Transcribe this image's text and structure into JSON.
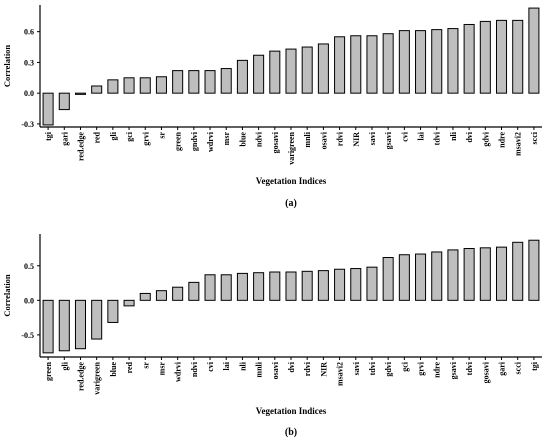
{
  "chart_data": [
    {
      "type": "bar",
      "panel_label": "(a)",
      "xlabel": "Vegetation Indices",
      "ylabel": "Correlation",
      "ylim": [
        -0.33,
        0.86
      ],
      "yticks": [
        -0.3,
        0.0,
        0.3,
        0.6
      ],
      "ytick_labels": [
        "-0.3",
        "0.0",
        "0.3",
        "0.6"
      ],
      "grid": false,
      "colors": {
        "bar_fill": "#bebebe",
        "bar_stroke": "#000000"
      },
      "categories": [
        "tgi",
        "gari",
        "red.edge",
        "red",
        "gli",
        "gci",
        "grvi",
        "sr",
        "green",
        "gndvi",
        "wdrvi",
        "msr",
        "blue",
        "ndvi",
        "gosavi",
        "varigreen",
        "mnli",
        "osavi",
        "rdvi",
        "NIR",
        "savi",
        "gsavi",
        "cvi",
        "lai",
        "tdvi",
        "nli",
        "dvi",
        "gdvi",
        "ndre",
        "msavi2",
        "scci"
      ],
      "values": [
        -0.31,
        -0.16,
        -0.01,
        0.07,
        0.13,
        0.15,
        0.15,
        0.16,
        0.22,
        0.22,
        0.22,
        0.24,
        0.32,
        0.37,
        0.41,
        0.43,
        0.45,
        0.48,
        0.55,
        0.56,
        0.56,
        0.58,
        0.61,
        0.61,
        0.62,
        0.63,
        0.67,
        0.7,
        0.71,
        0.71,
        0.83
      ]
    },
    {
      "type": "bar",
      "panel_label": "(b)",
      "xlabel": "Vegetation Indices",
      "ylabel": "Correlation",
      "ylim": [
        -0.82,
        0.96
      ],
      "yticks": [
        -0.5,
        0.0,
        0.5
      ],
      "ytick_labels": [
        "-0.5",
        "0.0",
        "0.5"
      ],
      "grid": false,
      "colors": {
        "bar_fill": "#bebebe",
        "bar_stroke": "#000000"
      },
      "categories": [
        "green",
        "gli",
        "red.edge",
        "varigreen",
        "blue",
        "red",
        "sr",
        "msr",
        "wdrvi",
        "ndvi",
        "cvi",
        "lai",
        "nli",
        "mnli",
        "osavi",
        "dvi",
        "rdvi",
        "NIR",
        "msavi2",
        "savi",
        "tdvi",
        "gdvi",
        "gci",
        "grvi",
        "ndre",
        "gsavi",
        "tdvi",
        "gosavi",
        "gari",
        "scci",
        "tgi"
      ],
      "values": [
        -0.76,
        -0.73,
        -0.7,
        -0.56,
        -0.32,
        -0.08,
        0.1,
        0.14,
        0.19,
        0.26,
        0.37,
        0.37,
        0.39,
        0.4,
        0.41,
        0.41,
        0.42,
        0.43,
        0.45,
        0.46,
        0.48,
        0.62,
        0.66,
        0.67,
        0.7,
        0.73,
        0.75,
        0.76,
        0.77,
        0.84,
        0.87
      ]
    }
  ]
}
